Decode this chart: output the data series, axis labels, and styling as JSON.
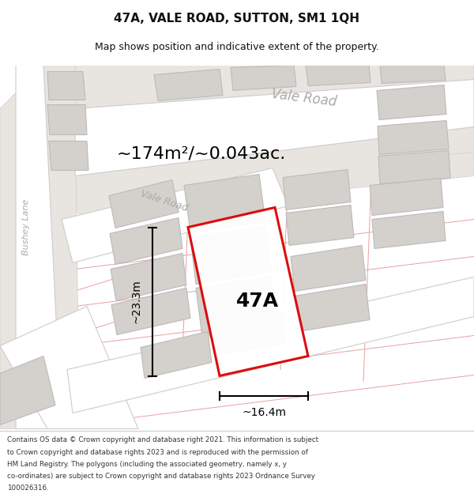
{
  "title": "47A, VALE ROAD, SUTTON, SM1 1QH",
  "subtitle": "Map shows position and indicative extent of the property.",
  "area_text": "~174m²/~0.043ac.",
  "dim_h": "~23.3m",
  "dim_w": "~16.4m",
  "label": "47A",
  "map_bg": "#f0eeeb",
  "road_color": "#ffffff",
  "road_stroke": "#cccccc",
  "road_band_color": "#e8e5e0",
  "building_color": "#d4d0cc",
  "building_stroke": "#bbbbbb",
  "red_line_color": "#dd0000",
  "pink_line_color": "#e8a0a0",
  "road_label_color": "#aaaaaa",
  "title_color": "#111111",
  "footer_color": "#333333",
  "footer_lines": [
    "Contains OS data © Crown copyright and database right 2021. This information is subject",
    "to Crown copyright and database rights 2023 and is reproduced with the permission of",
    "HM Land Registry. The polygons (including the associated geometry, namely x, y",
    "co-ordinates) are subject to Crown copyright and database rights 2023 Ordnance Survey",
    "100026316."
  ]
}
